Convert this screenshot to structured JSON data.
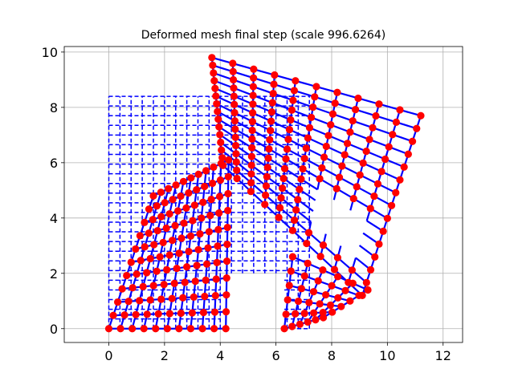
{
  "chart_data": {
    "type": "scatter",
    "title": "Deformed mesh final step (scale 996.6264)",
    "xlabel": "",
    "ylabel": "",
    "xlim": [
      -1.6,
      12.7
    ],
    "ylim": [
      -0.5,
      10.2
    ],
    "xticks": [
      0,
      2,
      4,
      6,
      8,
      10,
      12
    ],
    "yticks": [
      0,
      2,
      4,
      6,
      8,
      10
    ],
    "grid": true,
    "colors": {
      "undeformed_mesh": "#0000ff",
      "deformed_mesh": "#0000ff",
      "nodes": "#ff0000"
    },
    "undeformed_mesh": {
      "line_style": "dashed",
      "regions": [
        {
          "x": [
            0,
            7.2
          ],
          "y": [
            0,
            8.4
          ],
          "divisions": [
            18,
            24
          ]
        }
      ],
      "hole": {
        "x": [
          4.0,
          6.3
        ],
        "y": [
          0,
          2.0
        ]
      }
    },
    "deformed_mesh": {
      "line_style": "solid",
      "marker": "circle",
      "upper_block_corners": [
        [
          3.7,
          9.8
        ],
        [
          11.2,
          7.7
        ],
        [
          9.1,
          1.2
        ],
        [
          4.1,
          5.9
        ]
      ],
      "window_corners": [
        [
          8.3,
          8.8
        ],
        [
          10.7,
          8.1
        ],
        [
          10.1,
          6.1
        ],
        [
          8.0,
          6.9
        ]
      ],
      "left_leg_corners": [
        [
          0.0,
          0.0
        ],
        [
          4.2,
          0.0
        ],
        [
          4.3,
          6.1
        ],
        [
          1.6,
          4.8
        ]
      ],
      "right_leg_corners": [
        [
          6.3,
          0.0
        ],
        [
          7.7,
          0.4
        ],
        [
          9.3,
          1.4
        ],
        [
          6.6,
          2.6
        ]
      ]
    }
  }
}
